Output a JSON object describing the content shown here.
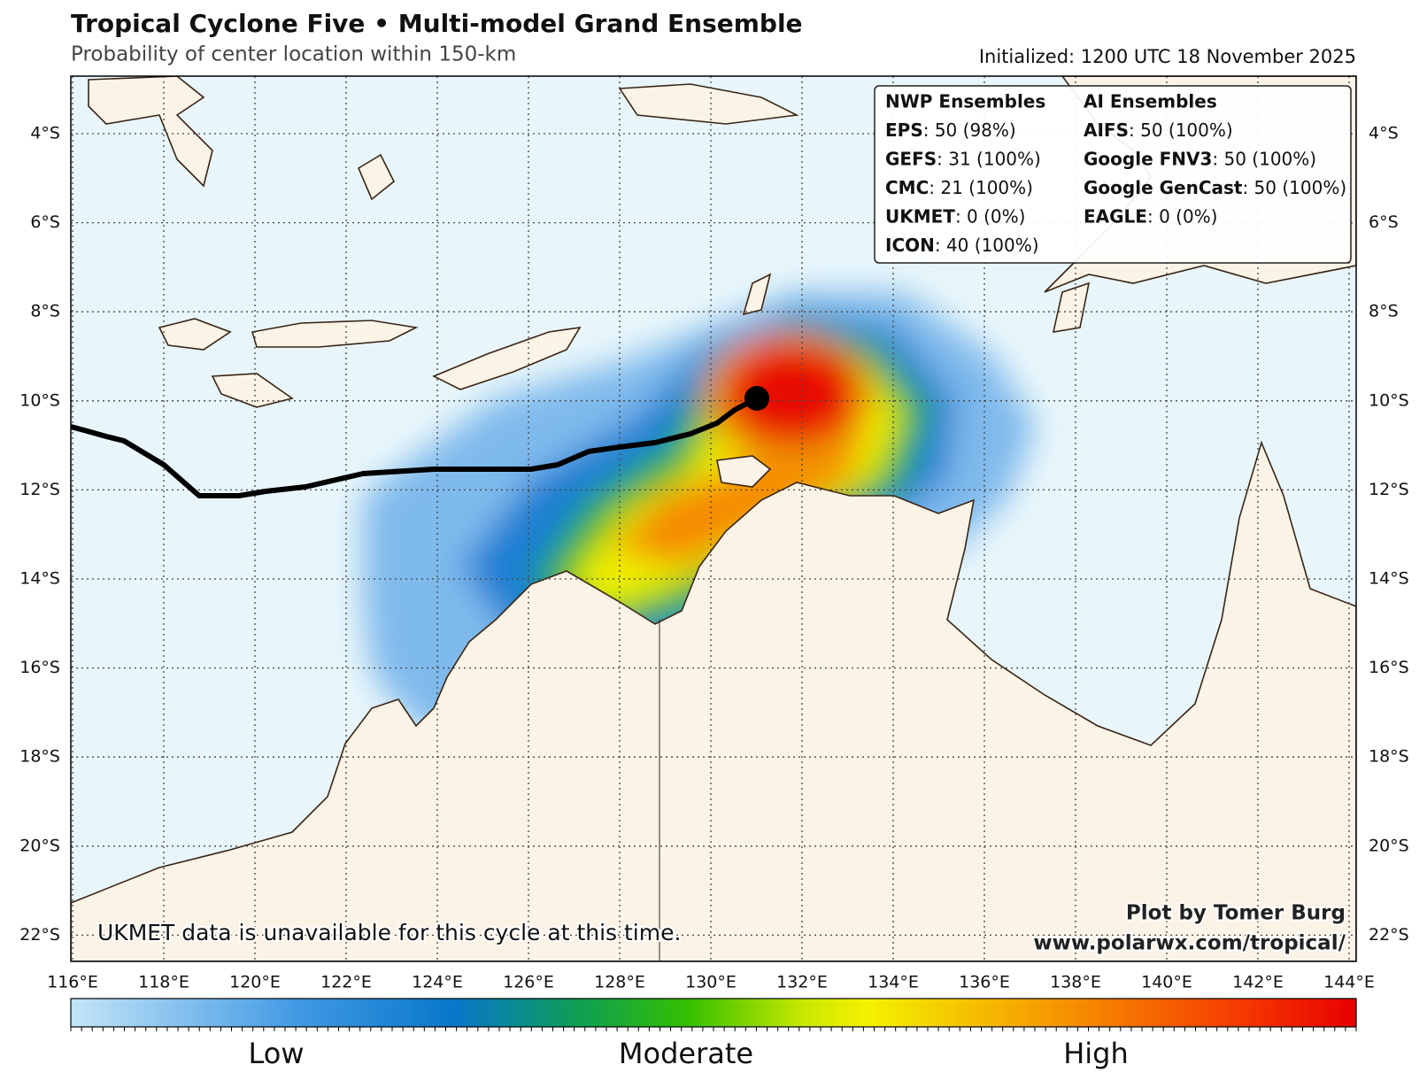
{
  "header": {
    "title": "Tropical Cyclone Five • Multi-model Grand Ensemble",
    "subtitle": "Probability of center location within 150-km",
    "initialized": "Initialized: 1200 UTC 18 November 2025"
  },
  "legend": {
    "columns": [
      {
        "heading": "NWP Ensembles",
        "entries": [
          {
            "name": "EPS",
            "detail": ": 50 (98%)"
          },
          {
            "name": "GEFS",
            "detail": ": 31 (100%)"
          },
          {
            "name": "CMC",
            "detail": ": 21 (100%)"
          },
          {
            "name": "UKMET",
            "detail": ": 0 (0%)"
          },
          {
            "name": "ICON",
            "detail": ": 40 (100%)"
          }
        ]
      },
      {
        "heading": "AI Ensembles",
        "entries": [
          {
            "name": "AIFS",
            "detail": ": 50 (100%)"
          },
          {
            "name": "Google FNV3",
            "detail": ": 50 (100%)"
          },
          {
            "name": "Google GenCast",
            "detail": ": 50 (100%)"
          },
          {
            "name": "EAGLE",
            "detail": ": 0 (0%)"
          }
        ]
      }
    ]
  },
  "map": {
    "lon_labels": [
      "116°E",
      "118°E",
      "120°E",
      "122°E",
      "124°E",
      "126°E",
      "128°E",
      "130°E",
      "132°E",
      "134°E",
      "136°E",
      "138°E",
      "140°E",
      "142°E",
      "144°E"
    ],
    "lat_labels": [
      "4°S",
      "6°S",
      "8°S",
      "10°S",
      "12°S",
      "14°S",
      "16°S",
      "18°S",
      "20°S",
      "22°S"
    ],
    "note": "UKMET data is unavailable for this cycle at this time."
  },
  "credit": [
    "Plot by Tomer Burg",
    "www.polarwx.com/tropical/"
  ],
  "colorbar": {
    "labels": [
      "Low",
      "Moderate",
      "High"
    ]
  }
}
